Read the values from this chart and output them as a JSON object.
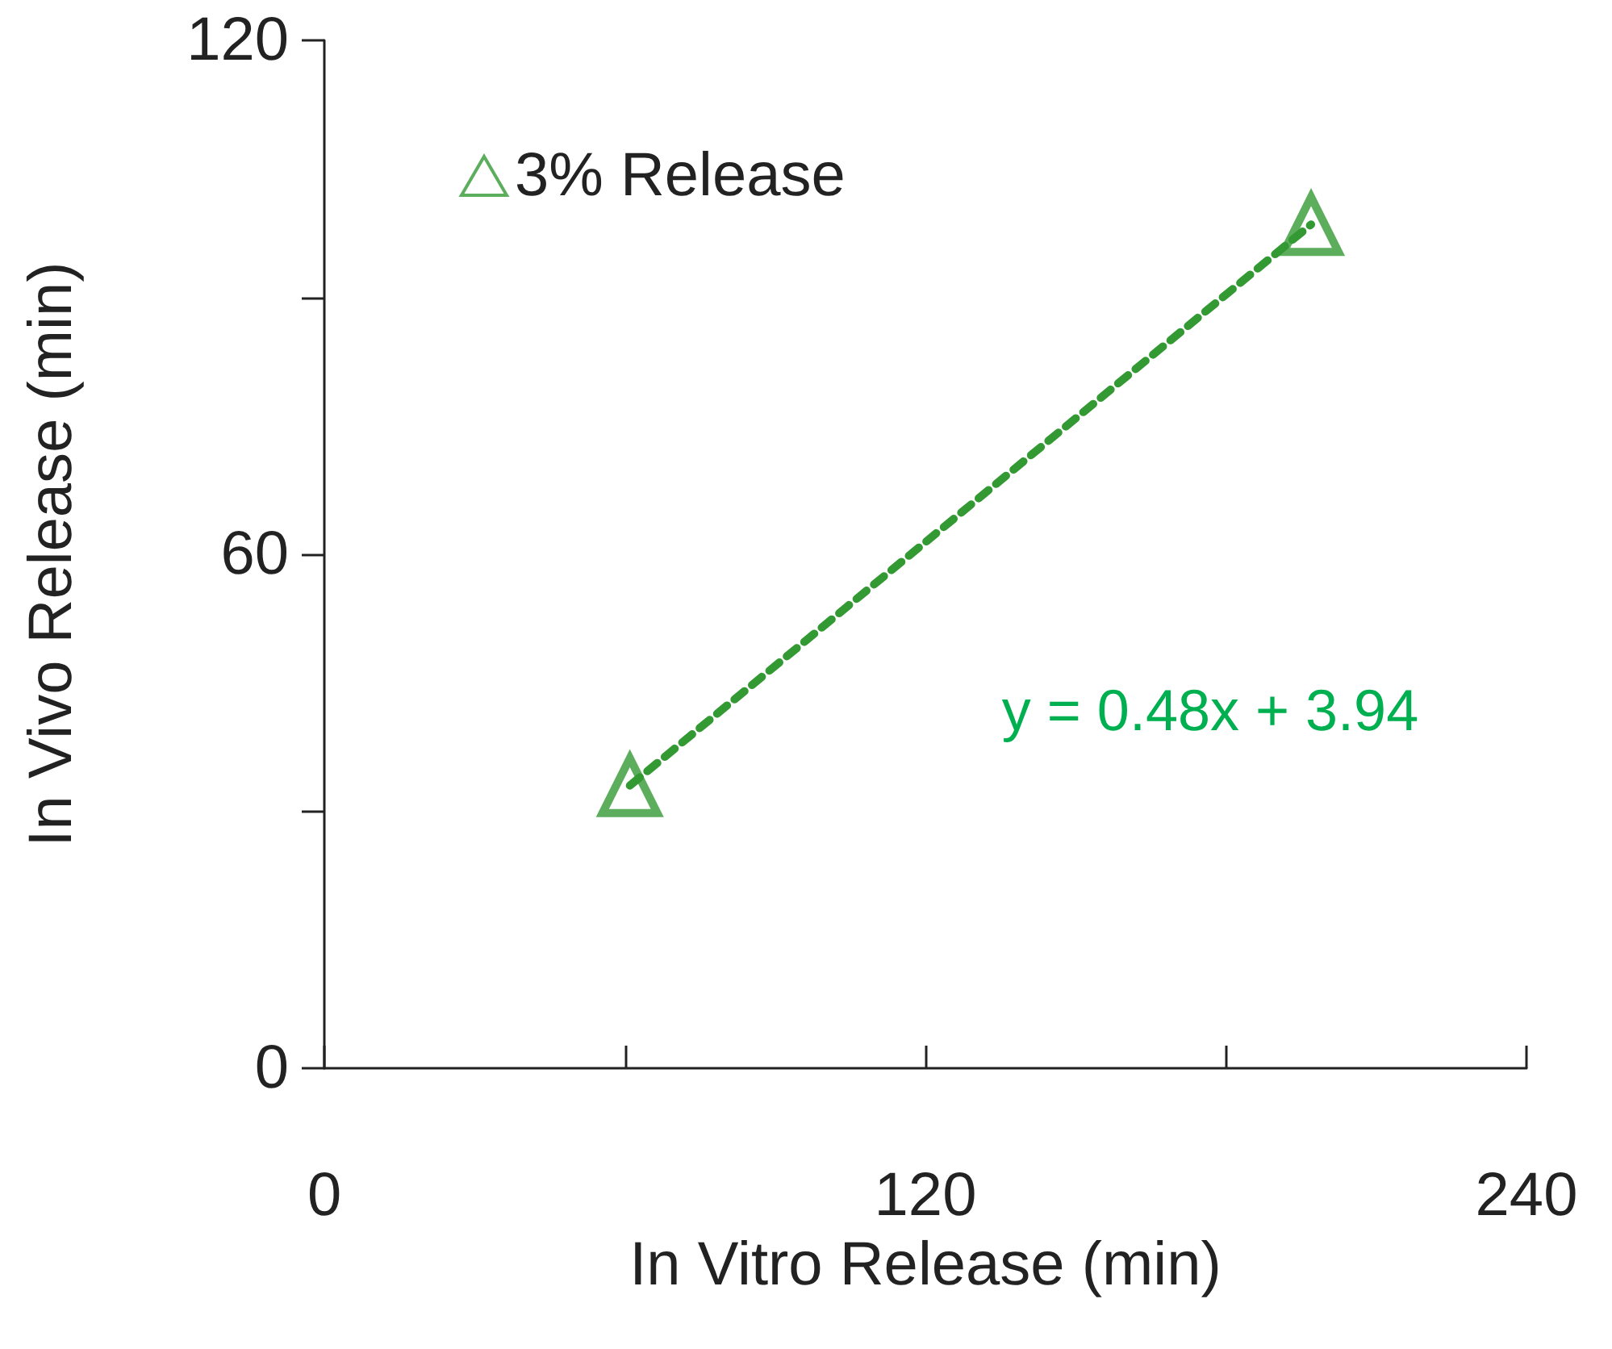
{
  "chart_data": {
    "type": "scatter",
    "xlabel": "In Vitro Release (min)",
    "ylabel": "In Vivo Release (min)",
    "x": [
      61,
      197
    ],
    "series": [
      {
        "name": "3% Release",
        "type": "scatter",
        "color": "#339933",
        "values": [
          33,
          98.5
        ],
        "marker": "triangle"
      },
      {
        "type": "line",
        "color": "#339933",
        "values": [
          33,
          98.5
        ],
        "line_style": "dashed",
        "marker": "none"
      }
    ],
    "annotations": [
      "y = 0.48x + 3.94"
    ],
    "xlim": [
      0,
      240
    ],
    "xticks": [
      0,
      {
        "value": 60,
        "label": null
      },
      120,
      {
        "value": 180,
        "label": null
      },
      240
    ],
    "ylim": [
      0,
      120
    ],
    "yticks": [
      0,
      {
        "value": 30,
        "label": null
      },
      60,
      {
        "value": 90,
        "label": null
      },
      120
    ],
    "grid": false,
    "legend": "top left"
  }
}
